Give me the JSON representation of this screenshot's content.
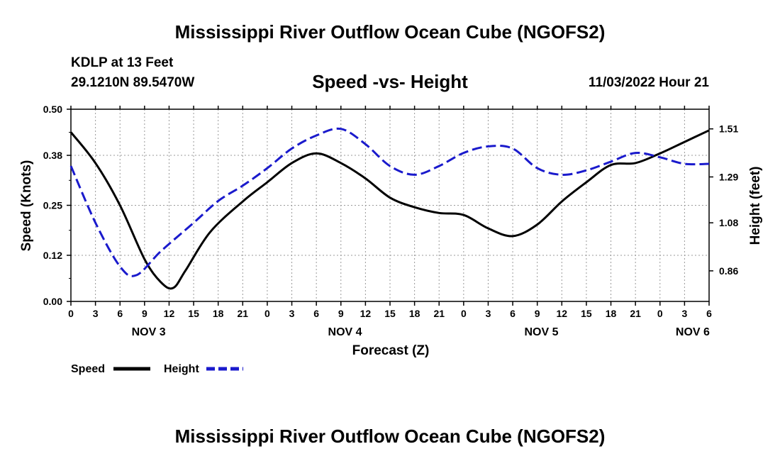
{
  "header": {
    "title": "Mississippi River Outflow Ocean Cube (NGOFS2)",
    "station": "KDLP at 13 Feet",
    "coords": "29.1210N  89.5470W",
    "subtitle": "Speed -vs- Height",
    "datetime": "11/03/2022 Hour 21"
  },
  "footer": {
    "title": "Mississippi River Outflow Ocean Cube (NGOFS2)"
  },
  "colors": {
    "speed": "#000000",
    "height": "#1a1acc",
    "grid": "#999999"
  },
  "chart_data": {
    "type": "line",
    "xlabel": "Forecast (Z)",
    "ylabel_left": "Speed (Knots)",
    "ylabel_right": "Height (feet)",
    "x_unit": "hours since Nov 3 00Z",
    "xlim": [
      0,
      78
    ],
    "ylim_left": [
      0,
      0.5
    ],
    "ylim_right": [
      0.72,
      1.6
    ],
    "x_tick_values": [
      0,
      3,
      6,
      9,
      12,
      15,
      18,
      21,
      24,
      27,
      30,
      33,
      36,
      39,
      42,
      45,
      48,
      51,
      54,
      57,
      60,
      63,
      66,
      69,
      72,
      75,
      78
    ],
    "x_tick_labels": [
      "0",
      "3",
      "6",
      "9",
      "12",
      "15",
      "18",
      "21",
      "0",
      "3",
      "6",
      "9",
      "12",
      "15",
      "18",
      "21",
      "0",
      "3",
      "6",
      "9",
      "12",
      "15",
      "18",
      "21",
      "0",
      "3",
      "6"
    ],
    "day_labels": [
      {
        "x": 9.5,
        "label": "NOV 3"
      },
      {
        "x": 33.5,
        "label": "NOV 4"
      },
      {
        "x": 57.5,
        "label": "NOV 5"
      },
      {
        "x": 76,
        "label": "NOV 6"
      }
    ],
    "y_left_ticks": [
      0.0,
      0.12,
      0.25,
      0.38,
      0.5
    ],
    "y_left_tick_labels": [
      "0.00",
      "0.12",
      "0.25",
      "0.38",
      "0.50"
    ],
    "y_right_ticks": [
      0.86,
      1.08,
      1.29,
      1.51
    ],
    "y_right_tick_labels": [
      "0.86",
      "1.08",
      "1.29",
      "1.51"
    ],
    "grid": true,
    "legend": {
      "position": "bottom-left"
    },
    "series": [
      {
        "name": "Speed",
        "axis": "left",
        "style": "solid",
        "x": [
          0,
          3,
          6,
          9,
          11,
          12.5,
          14,
          17,
          21,
          24,
          27,
          30,
          33,
          36,
          39,
          42,
          45,
          48,
          51,
          54,
          57,
          60,
          63,
          66,
          69,
          72,
          75,
          78
        ],
        "y": [
          0.44,
          0.36,
          0.25,
          0.11,
          0.05,
          0.035,
          0.08,
          0.18,
          0.26,
          0.31,
          0.36,
          0.385,
          0.36,
          0.32,
          0.27,
          0.245,
          0.23,
          0.225,
          0.19,
          0.17,
          0.2,
          0.26,
          0.31,
          0.355,
          0.36,
          0.385,
          0.415,
          0.445
        ]
      },
      {
        "name": "Height",
        "axis": "right",
        "style": "dashed",
        "x": [
          0,
          3,
          6,
          8,
          11,
          15,
          18,
          21,
          24,
          27,
          30,
          33,
          36,
          39,
          42,
          45,
          48,
          51,
          54,
          57,
          60,
          63,
          66,
          69,
          72,
          75,
          78
        ],
        "y": [
          1.34,
          1.08,
          0.88,
          0.84,
          0.95,
          1.08,
          1.18,
          1.25,
          1.33,
          1.42,
          1.48,
          1.51,
          1.44,
          1.34,
          1.3,
          1.34,
          1.4,
          1.43,
          1.42,
          1.33,
          1.3,
          1.32,
          1.36,
          1.4,
          1.38,
          1.35,
          1.35
        ]
      }
    ]
  }
}
